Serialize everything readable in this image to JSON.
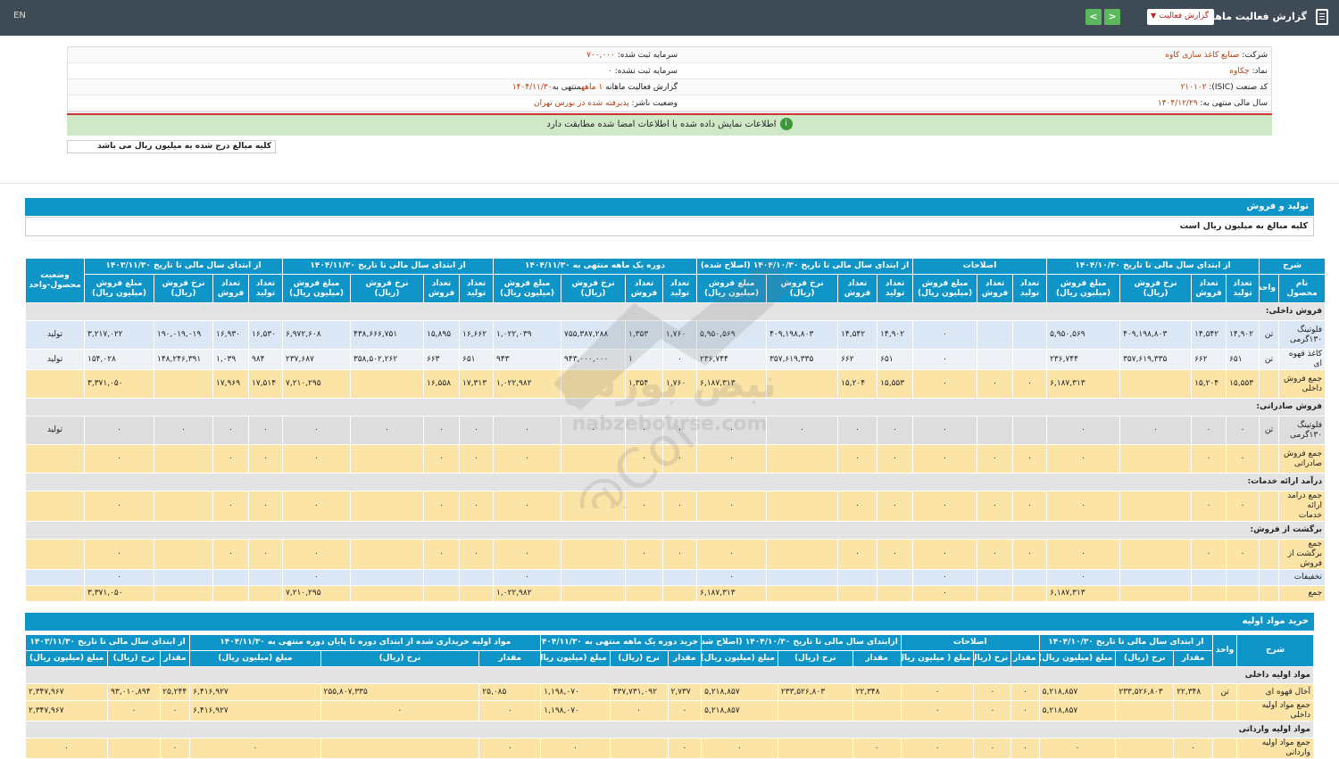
{
  "topbar": {
    "lang": "EN",
    "title": "گزارش فعالیت ماهانه",
    "dropdown": "گزارش فعالیت",
    "prev": "<",
    "next": ">"
  },
  "info": {
    "company_label": "شرکت:",
    "company": "صنایع کاغذ سازی کاوه",
    "capital_label": "سرمایه ثبت شده:",
    "capital": "۷۰۰,۰۰۰",
    "symbol_label": "نماد:",
    "symbol": "چکاوه",
    "unreg_label": "سرمایه ثبت نشده:",
    "unreg": "۰",
    "isic_label": "کد صنعت (ISIC):",
    "isic": "۲۱۰۱۰۲",
    "report_label": "گزارش فعالیت ماهانه",
    "report": "۱ ماهه",
    "report_end_label": "منتهی به",
    "report_end": "۱۴۰۴/۱۱/۳۰",
    "fy_label": "سال مالی منتهی به:",
    "fy": "۱۴۰۴/۱۲/۲۹",
    "status_label": "وضعیت ناشر:",
    "status": "پذیرفته شده در بورس تهران"
  },
  "alert": "اطلاعات نمایش داده شده با اطلاعات امضا شده مطابقت دارد",
  "note": "کلیه مبالغ درج شده به میلیون ریال می باشد",
  "sec1": {
    "title": "تولید و فروش",
    "sub": "کلیه مبالغ به میلیون ریال است"
  },
  "sec2": {
    "title": "خرید مواد اولیه"
  },
  "t1": {
    "g": [
      "شرح",
      "از ابتدای سال مالی تا تاریخ ۱۴۰۴/۱۰/۳۰",
      "اصلاحات",
      "از ابتدای سال مالی تا تاریخ ۱۴۰۴/۱۰/۳۰ (اصلاح شده)",
      "دوره یک ماهه منتهی به ۱۴۰۴/۱۱/۳۰",
      "از ابتدای سال مالی تا تاریخ ۱۴۰۴/۱۱/۳۰",
      "از ابتدای سال مالی تا تاریخ ۱۴۰۳/۱۱/۳۰",
      "وضعیت محصول-واحد"
    ],
    "s": [
      "نام محصول",
      "واحد",
      "تعداد تولید",
      "تعداد فروش",
      "نرخ فروش (ریال)",
      "مبلغ فروش (میلیون ریال)",
      "تعداد تولید",
      "تعداد فروش",
      "مبلغ فروش (میلیون ریال)",
      "تعداد تولید",
      "تعداد فروش",
      "نرخ فروش (ریال)",
      "مبلغ فروش (میلیون ریال)",
      "تعداد تولید",
      "تعداد فروش",
      "نرخ فروش (ریال)",
      "مبلغ فروش (میلیون ریال)",
      "تعداد تولید",
      "تعداد فروش",
      "نرخ فروش (ریال)",
      "مبلغ فروش (میلیون ریال)",
      "تعداد تولید",
      "تعداد فروش",
      "نرخ فروش (ریال)",
      "مبلغ فروش (میلیون ریال)"
    ],
    "rows": [
      {
        "k": "sec",
        "c": [
          "فروش داخلی:"
        ]
      },
      {
        "k": "blue",
        "c": [
          "فلوتینگ ۱۳۰گرمی",
          "تن",
          "۱۴,۹۰۲",
          "۱۴,۵۴۲",
          "۴۰۹,۱۹۸,۸۰۳",
          "۵,۹۵۰,۵۶۹",
          "",
          "",
          "۰",
          "۱۴,۹۰۲",
          "۱۴,۵۴۲",
          "۴۰۹,۱۹۸,۸۰۳",
          "۵,۹۵۰,۵۶۹",
          "۱,۷۶۰",
          "۱,۳۵۳",
          "۷۵۵,۳۸۷,۲۸۸",
          "۱,۰۲۲,۰۳۹",
          "۱۶,۶۶۲",
          "۱۵,۸۹۵",
          "۴۳۸,۶۶۶,۷۵۱",
          "۶,۹۷۲,۶۰۸",
          "۱۶,۵۳۰",
          "۱۶,۹۳۰",
          "۱۹۰,۰۱۹,۰۱۹",
          "۳,۲۱۷,۰۲۲",
          "تولید"
        ]
      },
      {
        "k": "wh",
        "c": [
          "کاغذ قهوه ای",
          "تن",
          "۶۵۱",
          "۶۶۲",
          "۳۵۷,۶۱۹,۳۳۵",
          "۲۳۶,۷۴۴",
          "",
          "",
          "۰",
          "۶۵۱",
          "۶۶۲",
          "۳۵۷,۶۱۹,۳۳۵",
          "۲۳۶,۷۴۴",
          "۰",
          "۱",
          "۹۴۳,۰۰۰,۰۰۰",
          "۹۴۳",
          "۶۵۱",
          "۶۶۳",
          "۳۵۸,۵۰۲,۲۶۲",
          "۲۳۷,۶۸۷",
          "۹۸۴",
          "۱,۰۳۹",
          "۱۴۸,۲۴۶,۳۹۱",
          "۱۵۴,۰۲۸",
          "تولید"
        ]
      },
      {
        "k": "tot",
        "c": [
          "جمع فروش داخلی",
          "",
          "۱۵,۵۵۳",
          "۱۵,۲۰۴",
          "",
          "۶,۱۸۷,۳۱۳",
          "۰",
          "۰",
          "۰",
          "۱۵,۵۵۳",
          "۱۵,۲۰۴",
          "",
          "۶,۱۸۷,۳۱۳",
          "۱,۷۶۰",
          "۱,۳۵۴",
          "",
          "۱,۰۲۲,۹۸۲",
          "۱۷,۳۱۳",
          "۱۶,۵۵۸",
          "",
          "۷,۲۱۰,۲۹۵",
          "۱۷,۵۱۴",
          "۱۷,۹۶۹",
          "",
          "۳,۳۷۱,۰۵۰",
          ""
        ]
      },
      {
        "k": "sec",
        "c": [
          "فروش صادراتی:"
        ]
      },
      {
        "k": "gray",
        "c": [
          "فلوتینگ ۱۳۰گرمی",
          "تن",
          "۰",
          "۰",
          "۰",
          "۰",
          "",
          "",
          "۰",
          "۰",
          "۰",
          "۰",
          "۰",
          "۰",
          "۰",
          "۰",
          "۰",
          "۰",
          "۰",
          "۰",
          "۰",
          "۰",
          "۰",
          "۰",
          "۰",
          "تولید"
        ]
      },
      {
        "k": "tot",
        "c": [
          "جمع فروش صادراتی",
          "",
          "۰",
          "۰",
          "",
          "۰",
          "۰",
          "۰",
          "۰",
          "۰",
          "۰",
          "",
          "۰",
          "۰",
          "۰",
          "",
          "۰",
          "۰",
          "۰",
          "",
          "۰",
          "۰",
          "۰",
          "",
          "۰",
          ""
        ]
      },
      {
        "k": "sec",
        "c": [
          "درآمد ارائه خدمات:"
        ]
      },
      {
        "k": "tot",
        "c": [
          "جمع درآمد ارائه خدمات",
          "",
          "۰",
          "۰",
          "",
          "۰",
          "۰",
          "۰",
          "۰",
          "۰",
          "۰",
          "",
          "۰",
          "۰",
          "۰",
          "",
          "۰",
          "۰",
          "۰",
          "",
          "۰",
          "۰",
          "۰",
          "",
          "۰",
          ""
        ]
      },
      {
        "k": "sec",
        "c": [
          "برگشت از فروش:"
        ]
      },
      {
        "k": "tot",
        "c": [
          "جمع برگشت از فروش",
          "",
          "۰",
          "۰",
          "",
          "۰",
          "۰",
          "۰",
          "۰",
          "۰",
          "۰",
          "",
          "۰",
          "۰",
          "۰",
          "",
          "۰",
          "۰",
          "۰",
          "",
          "۰",
          "۰",
          "۰",
          "",
          "۰",
          ""
        ]
      },
      {
        "k": "blue",
        "c": [
          "تخفیفات",
          "",
          "",
          "",
          "",
          "۰",
          "",
          "",
          "۰",
          "",
          "",
          "",
          "۰",
          "",
          "",
          "",
          "۰",
          "",
          "",
          "",
          "۰",
          "",
          "",
          "",
          "۰",
          ""
        ]
      },
      {
        "k": "tot",
        "c": [
          "جمع",
          "",
          "",
          "",
          "",
          "۶,۱۸۷,۳۱۳",
          "",
          "",
          "۰",
          "",
          "",
          "",
          "۶,۱۸۷,۳۱۳",
          "",
          "",
          "",
          "۱,۰۲۲,۹۸۲",
          "",
          "",
          "",
          "۷,۲۱۰,۲۹۵",
          "",
          "",
          "",
          "۳,۳۷۱,۰۵۰",
          ""
        ]
      }
    ]
  },
  "t2": {
    "g": [
      "شرح",
      "واحد",
      "از ابتدای سال مالی تا تاریخ ۱۴۰۴/۱۰/۳۰",
      "اصلاحات",
      "ازابتدای سال مالی تا تاریخ ۱۴۰۴/۱۰/۳۰ (اصلاح شده)",
      "خرید دوره یک ماهه منتهی به ۱۴۰۴/۱۱/۳۰",
      "مواد اولیه خریداری شده از ابتدای دوره تا پایان دوره منتهی به ۱۴۰۴/۱۱/۳۰",
      "از ابتدای سال مالی تا تاریخ ۱۴۰۳/۱۱/۳۰"
    ],
    "s": [
      "مقدار",
      "نرخ (ریال)",
      "مبلغ (میلیون ریال)",
      "مقدار",
      "نرخ (ریال)",
      "مبلغ ( میلیون ریال)",
      "مقدار",
      "نرخ (ریال)",
      "مبلغ (میلیون ریال)",
      "مقدار",
      "نرخ (ریال)",
      "مبلغ (میلیون ریال)",
      "مقدار",
      "نرخ (ریال)",
      "مبلغ (میلیون ریال)",
      "مقدار",
      "نرخ (ریال)",
      "مبلغ (میلیون ریال)"
    ],
    "rows": [
      {
        "k": "sec",
        "c": [
          "مواد اولیه داخلی"
        ]
      },
      {
        "k": "tot",
        "c": [
          "آخال قهوه ای",
          "تن",
          "۲۲,۳۴۸",
          "۲۳۳,۵۲۶,۸۰۳",
          "۵,۲۱۸,۸۵۷",
          "۰",
          "۰",
          "۰",
          "۲۲,۳۴۸",
          "۲۳۳,۵۲۶,۸۰۳",
          "۵,۲۱۸,۸۵۷",
          "۲,۷۳۷",
          "۴۳۷,۷۳۱,۰۹۲",
          "۱,۱۹۸,۰۷۰",
          "۲۵,۰۸۵",
          "۲۵۵,۸۰۷,۳۳۵",
          "۶,۴۱۶,۹۲۷",
          "۲۵,۲۴۴",
          "۹۳,۰۱۰,۸۹۴",
          "۲,۳۴۷,۹۶۷"
        ]
      },
      {
        "k": "tot",
        "c": [
          "جمع مواد اولیه داخلی",
          "",
          "",
          "",
          "۵,۲۱۸,۸۵۷",
          "۰",
          "۰",
          "۰",
          "",
          "",
          "۵,۲۱۸,۸۵۷",
          "۰",
          "۰",
          "۱,۱۹۸,۰۷۰",
          "۰",
          "۰",
          "۶,۴۱۶,۹۲۷",
          "۰",
          "۰",
          "۲,۳۴۷,۹۶۷"
        ]
      },
      {
        "k": "sec",
        "c": [
          "مواد اولیه وارداتی"
        ]
      },
      {
        "k": "tot",
        "c": [
          "جمع مواد اولیه وارداتی",
          "",
          "۰",
          "",
          "۰",
          "۰",
          "۰",
          "۰",
          "۰",
          "",
          "۰",
          "۰",
          "",
          "۰",
          "۰",
          "",
          "۰",
          "۰",
          "",
          "۰"
        ]
      }
    ]
  },
  "watermark": {
    "fa": "نبض بورس",
    "en": "nabzebourse.com",
    "handle": "@Coi"
  }
}
